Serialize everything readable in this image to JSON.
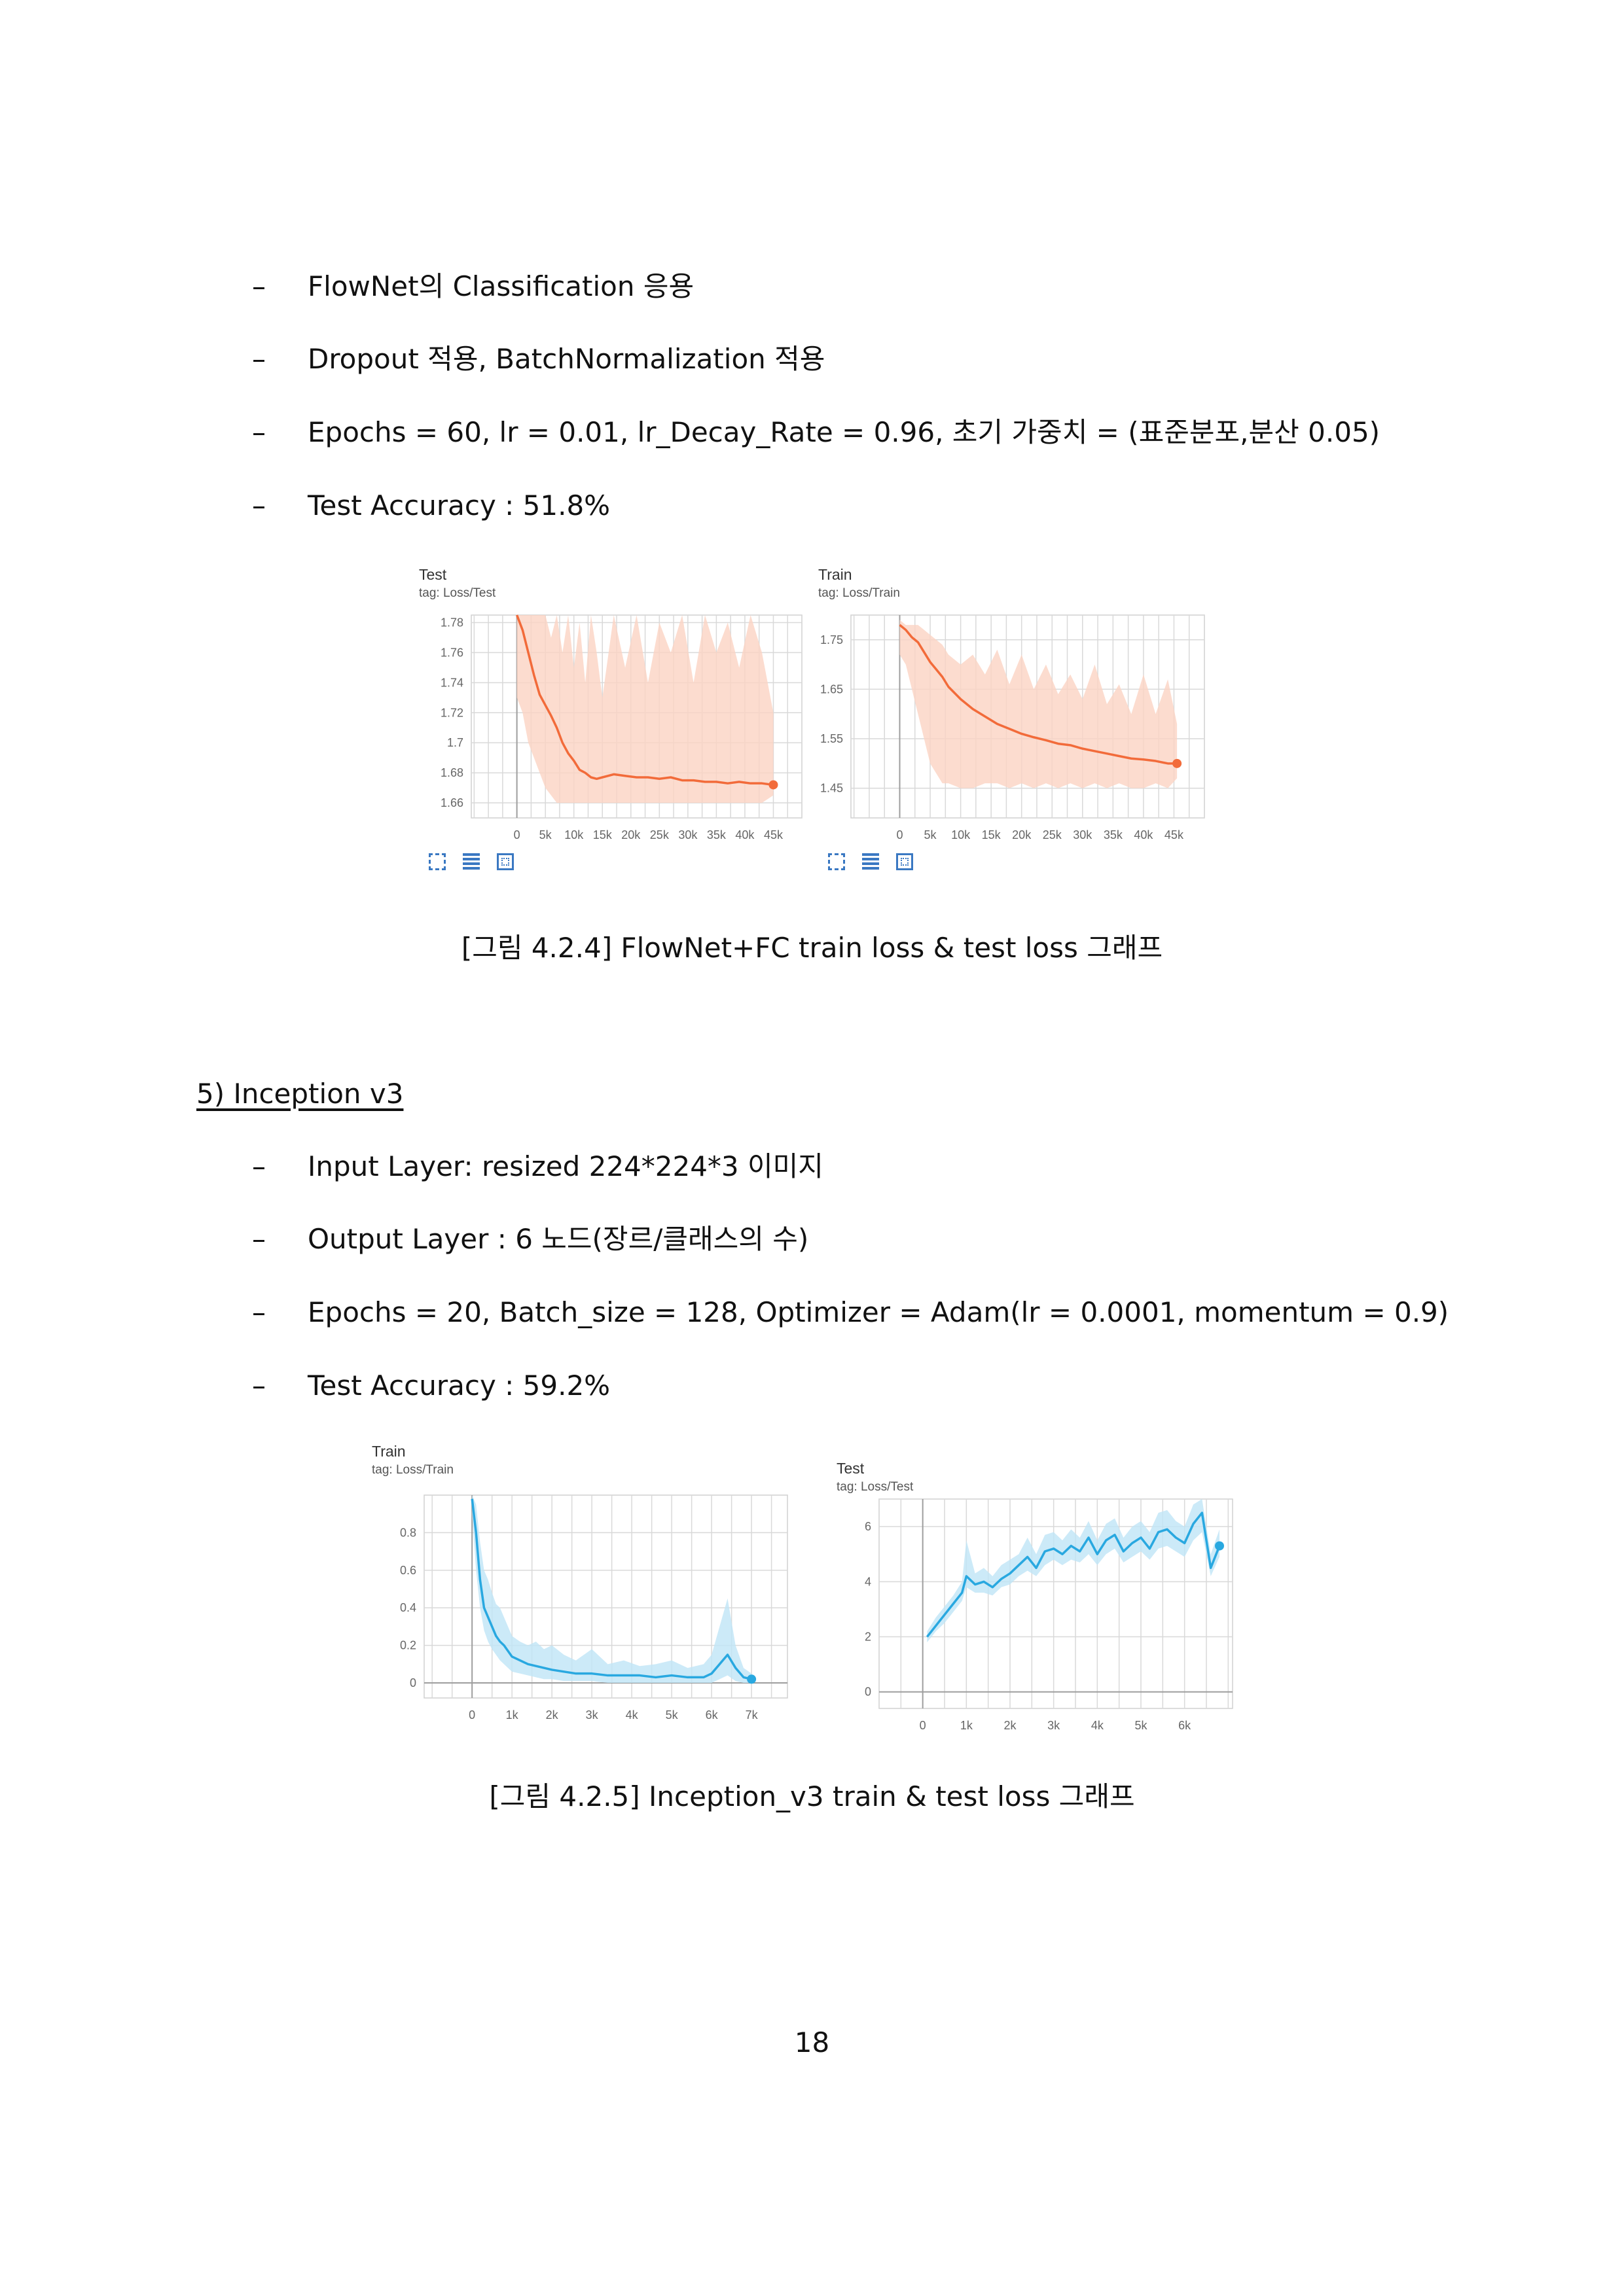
{
  "flownet_bullets": [
    "FlowNet의 Classification 응용",
    "Dropout 적용, BatchNormalization 적용",
    "Epochs = 60, lr = 0.01, lr_Decay_Rate = 0.96, 초기 가중치 = (표준분포,분산 0.05)",
    "Test Accuracy : 51.8%"
  ],
  "bullet_dash": "–",
  "figure1": {
    "caption": "[그림 4.2.4] FlowNet+FC train loss & test loss 그래프"
  },
  "section5": {
    "title": "5) Inception v3",
    "bullets": [
      "Input Layer: resized 224*224*3 이미지",
      "Output Layer : 6 노드(장르/클래스의 수)",
      "Epochs = 20, Batch_size = 128, Optimizer = Adam(lr = 0.0001, momentum = 0.9)",
      "Test Accuracy : 59.2%"
    ]
  },
  "figure2": {
    "caption": "[그림 4.2.5] Inception_v3 train & test loss 그래프"
  },
  "page_number": "18",
  "toolbar_icons": [
    "expand-icon",
    "list-lines-icon",
    "fit-domain-icon"
  ],
  "chart_data": [
    {
      "type": "line",
      "title": "Test",
      "tag": "tag: Loss/Test",
      "color": "#f26b3a",
      "band_color": "#fbd3c3",
      "xlim": [
        -8000,
        50000
      ],
      "ylim": [
        1.65,
        1.785
      ],
      "xticks": [
        0,
        5000,
        10000,
        15000,
        20000,
        25000,
        30000,
        35000,
        40000,
        45000
      ],
      "xtick_labels": [
        "0",
        "5k",
        "10k",
        "15k",
        "20k",
        "25k",
        "30k",
        "35k",
        "40k",
        "45k"
      ],
      "yticks": [
        1.66,
        1.68,
        1.7,
        1.72,
        1.74,
        1.76,
        1.78
      ],
      "ytick_labels": [
        "1.66",
        "1.68",
        "1.7",
        "1.72",
        "1.74",
        "1.76",
        "1.78"
      ],
      "x": [
        0,
        1000,
        2000,
        3000,
        4000,
        5000,
        6000,
        7000,
        8000,
        9000,
        10000,
        11000,
        12000,
        13000,
        14000,
        15000,
        17000,
        19000,
        21000,
        23000,
        25000,
        27000,
        29000,
        31000,
        33000,
        35000,
        37000,
        39000,
        41000,
        43000,
        45000
      ],
      "y": [
        1.785,
        1.775,
        1.76,
        1.745,
        1.732,
        1.725,
        1.718,
        1.71,
        1.7,
        1.693,
        1.688,
        1.682,
        1.68,
        1.677,
        1.676,
        1.677,
        1.679,
        1.678,
        1.677,
        1.677,
        1.676,
        1.677,
        1.675,
        1.675,
        1.674,
        1.674,
        1.673,
        1.674,
        1.673,
        1.673,
        1.672
      ],
      "band_low": [
        1.73,
        1.72,
        1.7,
        1.69,
        1.68,
        1.67,
        1.665,
        1.66,
        1.66,
        1.66,
        1.66,
        1.66,
        1.66,
        1.66,
        1.66,
        1.66,
        1.66,
        1.66,
        1.66,
        1.66,
        1.66,
        1.66,
        1.66,
        1.66,
        1.66,
        1.66,
        1.66,
        1.66,
        1.66,
        1.66,
        1.665
      ],
      "band_high": [
        1.785,
        1.785,
        1.785,
        1.785,
        1.785,
        1.785,
        1.77,
        1.785,
        1.76,
        1.785,
        1.75,
        1.78,
        1.74,
        1.785,
        1.76,
        1.73,
        1.785,
        1.75,
        1.785,
        1.74,
        1.78,
        1.76,
        1.785,
        1.74,
        1.785,
        1.76,
        1.78,
        1.75,
        1.785,
        1.76,
        1.72
      ]
    },
    {
      "type": "line",
      "title": "Train",
      "tag": "tag: Loss/Train",
      "color": "#f26b3a",
      "band_color": "#fbd3c3",
      "xlim": [
        -8000,
        50000
      ],
      "ylim": [
        1.39,
        1.8
      ],
      "xticks": [
        0,
        5000,
        10000,
        15000,
        20000,
        25000,
        30000,
        35000,
        40000,
        45000
      ],
      "xtick_labels": [
        "0",
        "5k",
        "10k",
        "15k",
        "20k",
        "25k",
        "30k",
        "35k",
        "40k",
        "45k"
      ],
      "yticks": [
        1.45,
        1.55,
        1.65,
        1.75
      ],
      "ytick_labels": [
        "1.45",
        "1.55",
        "1.65",
        "1.75"
      ],
      "x": [
        0,
        1000,
        2000,
        3000,
        4000,
        5000,
        6000,
        7000,
        8000,
        10000,
        12000,
        14000,
        16000,
        18000,
        20000,
        22000,
        24000,
        26000,
        28000,
        30000,
        32000,
        34000,
        36000,
        38000,
        40000,
        42000,
        44000,
        45500
      ],
      "y": [
        1.78,
        1.77,
        1.755,
        1.745,
        1.725,
        1.705,
        1.69,
        1.675,
        1.655,
        1.63,
        1.61,
        1.595,
        1.58,
        1.57,
        1.56,
        1.553,
        1.547,
        1.54,
        1.537,
        1.53,
        1.525,
        1.52,
        1.515,
        1.51,
        1.508,
        1.505,
        1.5,
        1.5
      ],
      "band_low": [
        1.72,
        1.7,
        1.65,
        1.6,
        1.55,
        1.5,
        1.48,
        1.46,
        1.46,
        1.45,
        1.45,
        1.46,
        1.46,
        1.45,
        1.46,
        1.45,
        1.46,
        1.45,
        1.46,
        1.45,
        1.46,
        1.45,
        1.46,
        1.45,
        1.45,
        1.46,
        1.45,
        1.47
      ],
      "band_high": [
        1.79,
        1.78,
        1.78,
        1.78,
        1.77,
        1.76,
        1.75,
        1.74,
        1.72,
        1.7,
        1.72,
        1.68,
        1.73,
        1.66,
        1.72,
        1.65,
        1.7,
        1.64,
        1.68,
        1.63,
        1.7,
        1.62,
        1.66,
        1.6,
        1.68,
        1.6,
        1.67,
        1.58
      ]
    },
    {
      "type": "line",
      "title": "Train",
      "tag": "tag: Loss/Train",
      "color": "#29a8e0",
      "band_color": "#bfe5f6",
      "xlim": [
        -1200,
        7900
      ],
      "ylim": [
        -0.08,
        1.0
      ],
      "xticks": [
        0,
        1000,
        2000,
        3000,
        4000,
        5000,
        6000,
        7000
      ],
      "xtick_labels": [
        "0",
        "1k",
        "2k",
        "3k",
        "4k",
        "5k",
        "6k",
        "7k"
      ],
      "yticks": [
        0,
        0.2,
        0.4,
        0.6,
        0.8
      ],
      "ytick_labels": [
        "0",
        "0.2",
        "0.4",
        "0.6",
        "0.8"
      ],
      "x": [
        0,
        100,
        200,
        300,
        400,
        500,
        600,
        700,
        800,
        900,
        1000,
        1200,
        1400,
        1600,
        1800,
        2000,
        2300,
        2600,
        3000,
        3400,
        3800,
        4200,
        4600,
        5000,
        5400,
        5800,
        6000,
        6200,
        6400,
        6600,
        6800,
        7000
      ],
      "y": [
        0.98,
        0.8,
        0.55,
        0.4,
        0.35,
        0.3,
        0.25,
        0.22,
        0.2,
        0.17,
        0.14,
        0.12,
        0.1,
        0.09,
        0.08,
        0.07,
        0.06,
        0.05,
        0.05,
        0.04,
        0.04,
        0.04,
        0.03,
        0.04,
        0.03,
        0.03,
        0.05,
        0.1,
        0.15,
        0.08,
        0.03,
        0.02
      ],
      "band_low": [
        0.9,
        0.6,
        0.4,
        0.28,
        0.22,
        0.18,
        0.15,
        0.12,
        0.1,
        0.08,
        0.06,
        0.05,
        0.04,
        0.03,
        0.02,
        0.02,
        0.01,
        0.01,
        0.01,
        0.0,
        0.0,
        0.0,
        0.0,
        0.0,
        0.0,
        0.0,
        0.0,
        0.02,
        0.04,
        0.01,
        0.0,
        0.0
      ],
      "band_high": [
        1.0,
        0.95,
        0.75,
        0.6,
        0.55,
        0.48,
        0.42,
        0.4,
        0.35,
        0.3,
        0.25,
        0.22,
        0.2,
        0.22,
        0.18,
        0.2,
        0.15,
        0.12,
        0.18,
        0.1,
        0.12,
        0.09,
        0.1,
        0.12,
        0.08,
        0.1,
        0.15,
        0.3,
        0.45,
        0.2,
        0.08,
        0.05
      ]
    },
    {
      "type": "line",
      "title": "Test",
      "tag": "tag: Loss/Test",
      "color": "#29a8e0",
      "band_color": "#bfe5f6",
      "xlim": [
        -1000,
        7100
      ],
      "ylim": [
        -0.6,
        7.0
      ],
      "xticks": [
        0,
        1000,
        2000,
        3000,
        4000,
        5000,
        6000
      ],
      "xtick_labels": [
        "0",
        "1k",
        "2k",
        "3k",
        "4k",
        "5k",
        "6k"
      ],
      "yticks": [
        0,
        2,
        4,
        6
      ],
      "ytick_labels": [
        "0",
        "2",
        "4",
        "6"
      ],
      "x": [
        100,
        300,
        500,
        700,
        900,
        1000,
        1200,
        1400,
        1600,
        1800,
        2000,
        2200,
        2400,
        2600,
        2800,
        3000,
        3200,
        3400,
        3600,
        3800,
        4000,
        4200,
        4400,
        4600,
        4800,
        5000,
        5200,
        5400,
        5600,
        5800,
        6000,
        6200,
        6400,
        6600,
        6800
      ],
      "y": [
        2.0,
        2.4,
        2.8,
        3.2,
        3.6,
        4.2,
        3.9,
        4.0,
        3.8,
        4.1,
        4.3,
        4.6,
        4.9,
        4.5,
        5.1,
        5.2,
        5.0,
        5.3,
        5.1,
        5.6,
        5.0,
        5.5,
        5.7,
        5.1,
        5.4,
        5.6,
        5.2,
        5.8,
        5.9,
        5.6,
        5.4,
        6.1,
        6.5,
        4.5,
        5.3
      ],
      "band_low": [
        1.8,
        2.2,
        2.5,
        2.9,
        3.3,
        3.8,
        3.6,
        3.6,
        3.5,
        3.8,
        3.9,
        4.2,
        4.4,
        4.2,
        4.6,
        4.8,
        4.6,
        4.8,
        4.7,
        5.0,
        4.6,
        5.0,
        5.2,
        4.7,
        4.9,
        5.1,
        4.8,
        5.2,
        5.3,
        5.1,
        4.9,
        5.5,
        5.8,
        4.2,
        4.9
      ],
      "band_high": [
        2.2,
        2.7,
        3.1,
        3.5,
        4.0,
        5.5,
        4.3,
        4.5,
        4.2,
        4.6,
        4.8,
        5.0,
        5.6,
        5.0,
        5.7,
        5.8,
        5.5,
        5.9,
        5.6,
        6.2,
        5.5,
        6.1,
        6.3,
        5.6,
        6.0,
        6.2,
        5.8,
        6.5,
        6.6,
        6.2,
        6.0,
        6.8,
        7.0,
        5.0,
        5.9
      ]
    }
  ]
}
